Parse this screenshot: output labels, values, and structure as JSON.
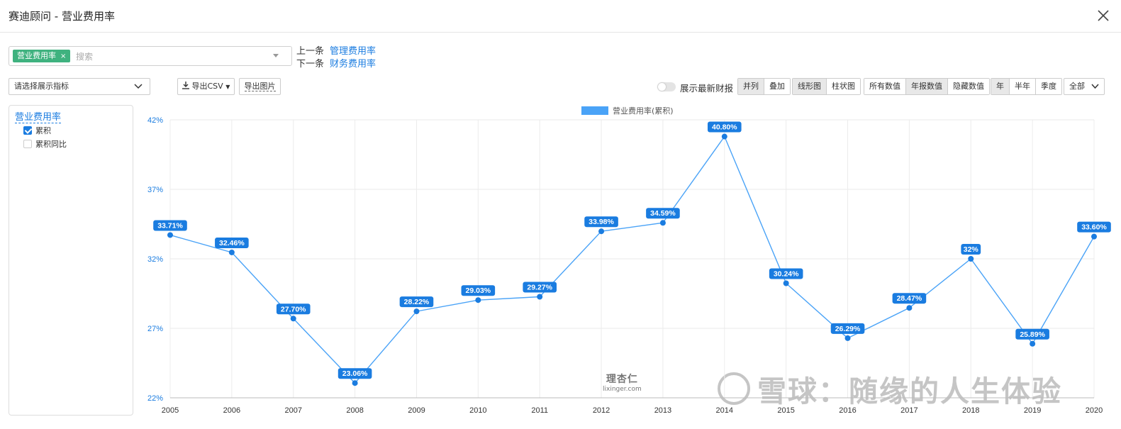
{
  "window": {
    "title": "赛迪顾问 - 营业费用率"
  },
  "selector": {
    "tag": "营业费用率",
    "tag_close": "×",
    "placeholder": "搜索"
  },
  "nav": {
    "prev_label": "上一条",
    "prev_value": "管理费用率",
    "next_label": "下一条",
    "next_value": "财务费用率"
  },
  "toolbar": {
    "indicator_select": "请选择展示指标",
    "export_csv": "导出CSV",
    "export_image": "导出图片",
    "show_latest": "展示最新财报",
    "layout_group": [
      "并列",
      "叠加"
    ],
    "layout_active": 0,
    "chart_group": [
      "线形图",
      "柱状图"
    ],
    "chart_active": 0,
    "value_group": [
      "所有数值",
      "年报数值",
      "隐藏数值"
    ],
    "value_active": 1,
    "period_group": [
      "年",
      "半年",
      "季度"
    ],
    "period_active": 0,
    "range_select": "全部"
  },
  "indicator_panel": {
    "title": "营业费用率",
    "options": [
      {
        "label": "累积",
        "checked": true
      },
      {
        "label": "累积同比",
        "checked": false
      }
    ]
  },
  "watermark": {
    "brand": "雪球：随缘的人生体验",
    "site_logo": "理杏仁",
    "site_url": "lixinger.com"
  },
  "chart_data": {
    "type": "line",
    "legend": "营业费用率(累积)",
    "color": "#4aa3f7",
    "label_color": "#1a7ce0",
    "x": [
      "2005",
      "2006",
      "2007",
      "2008",
      "2009",
      "2010",
      "2011",
      "2012",
      "2013",
      "2014",
      "2015",
      "2016",
      "2017",
      "2018",
      "2019",
      "2020"
    ],
    "values": [
      33.71,
      32.46,
      27.7,
      23.06,
      28.22,
      29.03,
      29.27,
      33.98,
      34.59,
      40.8,
      30.24,
      26.29,
      28.47,
      32.0,
      25.89,
      33.6
    ],
    "labels": [
      "33.71%",
      "32.46%",
      "27.70%",
      "23.06%",
      "28.22%",
      "29.03%",
      "29.27%",
      "33.98%",
      "34.59%",
      "40.80%",
      "30.24%",
      "26.29%",
      "28.47%",
      "32%",
      "25.89%",
      "33.60%"
    ],
    "ylim": [
      22,
      42
    ],
    "yticks": [
      "22%",
      "27%",
      "32%",
      "37%",
      "42%"
    ],
    "ytick_values": [
      22,
      27,
      32,
      37,
      42
    ],
    "grid": true
  }
}
